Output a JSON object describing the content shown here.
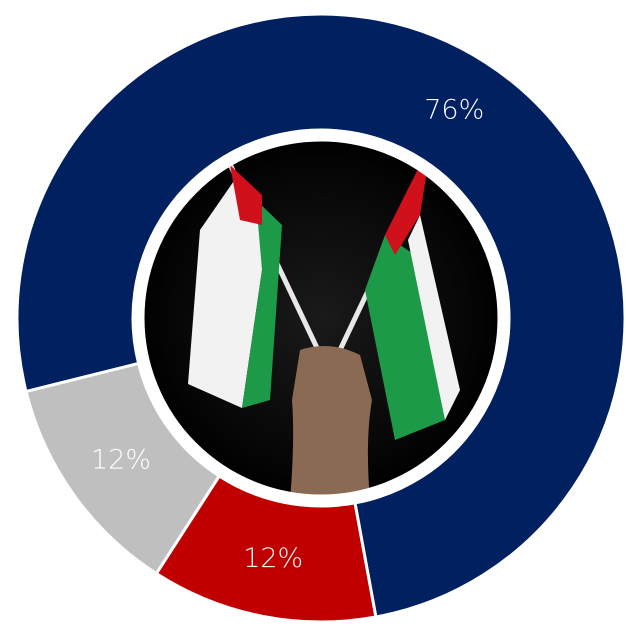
{
  "chart_data": {
    "type": "donut",
    "categories": [
      null,
      null,
      null
    ],
    "values": [
      76,
      12,
      12
    ],
    "value_labels": [
      "76%",
      "12%",
      "12%"
    ],
    "colors": [
      "#002060",
      "#c00000",
      "#bfbfbf"
    ]
  }
}
